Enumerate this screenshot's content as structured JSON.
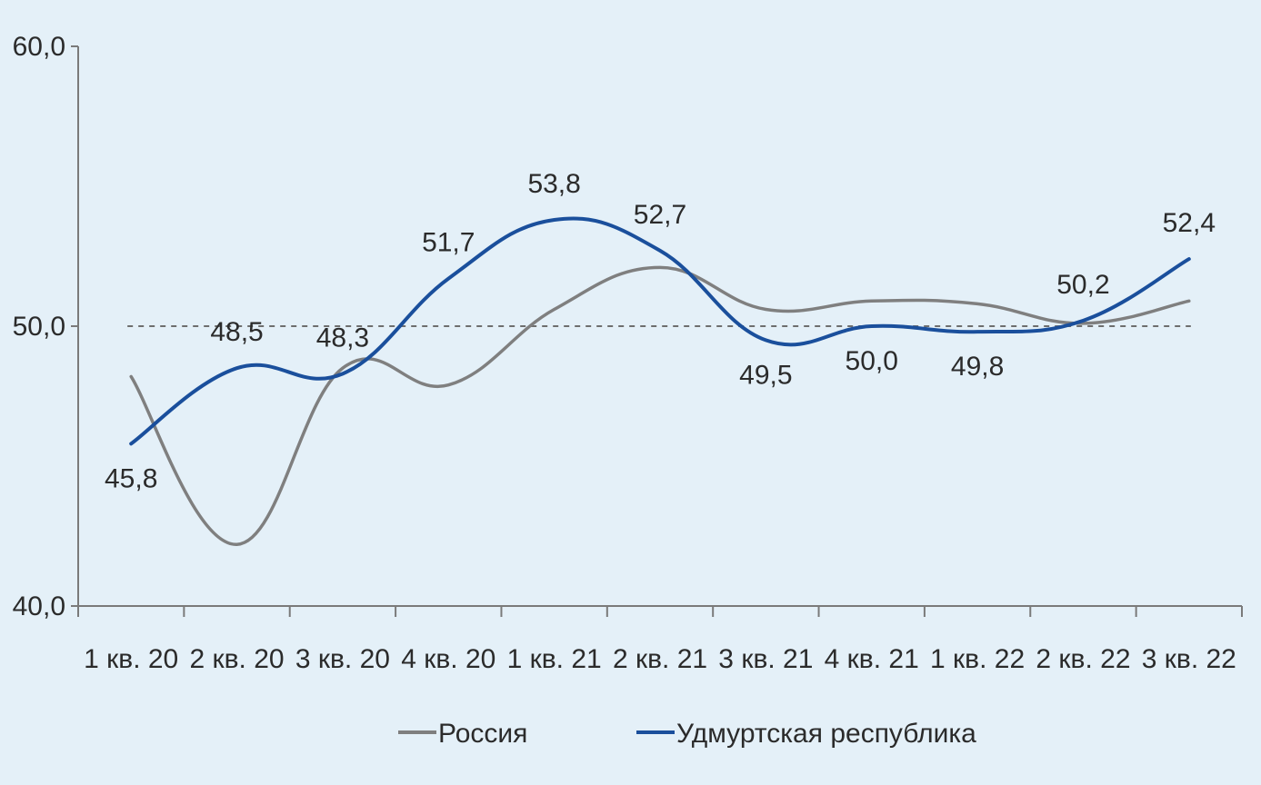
{
  "chart_data": {
    "type": "line",
    "categories": [
      "1 кв. 20",
      "2 кв. 20",
      "3 кв. 20",
      "4 кв. 20",
      "1 кв. 21",
      "2 кв. 21",
      "3 кв. 21",
      "4 кв. 21",
      "1 кв. 22",
      "2 кв. 22",
      "3 кв. 22"
    ],
    "ylim": [
      40,
      60
    ],
    "yticks": [
      "40,0",
      "50,0",
      "60,0"
    ],
    "reference_line": 50,
    "legend_position": "bottom",
    "series": [
      {
        "name": "Россия",
        "color": "#7f7f7f",
        "values": [
          48.2,
          42.2,
          48.5,
          47.9,
          50.6,
          52.1,
          50.6,
          50.9,
          50.8,
          50.1,
          50.9
        ]
      },
      {
        "name": "Удмуртская республика",
        "color": "#1a4f9c",
        "values": [
          45.8,
          48.5,
          48.3,
          51.7,
          53.8,
          52.7,
          49.5,
          50.0,
          49.8,
          50.2,
          52.4
        ],
        "labels": [
          "45,8",
          "48,5",
          "48,3",
          "51,7",
          "53,8",
          "52,7",
          "49,5",
          "50,0",
          "49,8",
          "50,2",
          "52,4"
        ]
      }
    ]
  }
}
